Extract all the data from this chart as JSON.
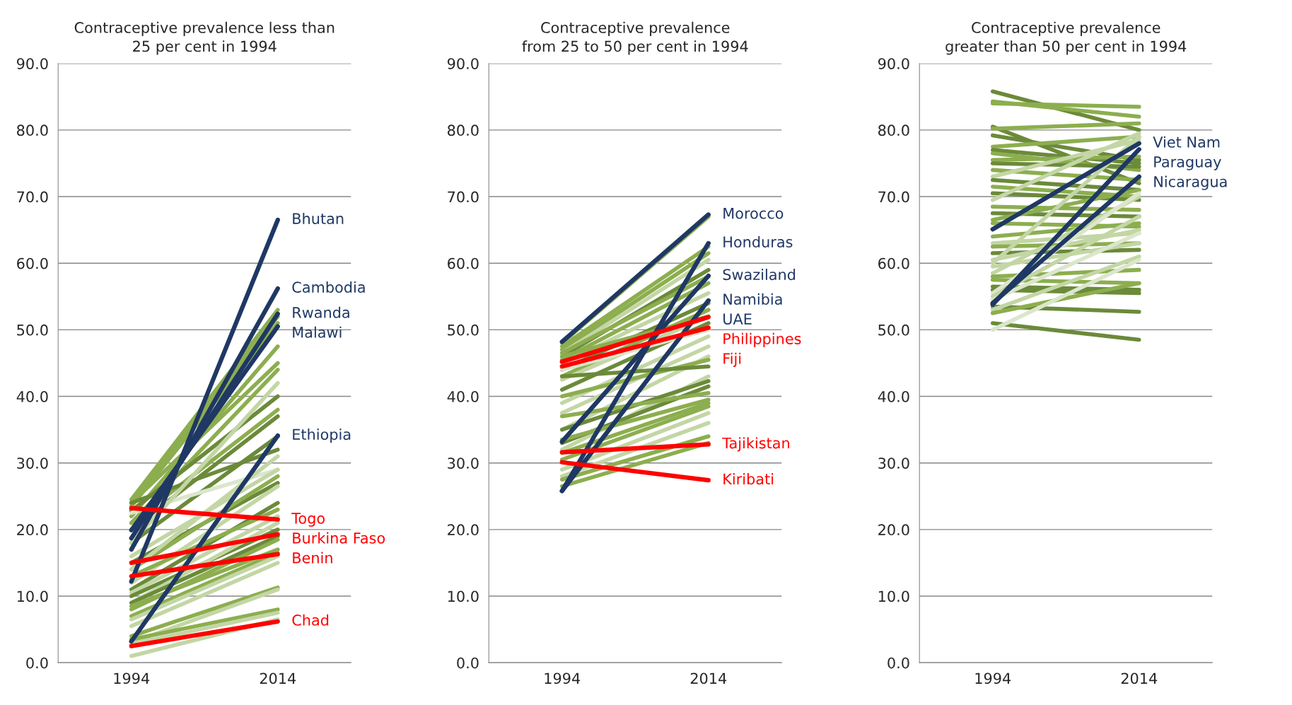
{
  "chart_data": [
    {
      "type": "line",
      "title": "Contraceptive prevalence less than\n25 per cent in 1994",
      "categories": [
        "1994",
        "2014"
      ],
      "ylim": [
        0,
        90
      ],
      "yticks": [
        {
          "value": 0,
          "label": "0.0"
        },
        {
          "value": 10,
          "label": "10.0"
        },
        {
          "value": 20,
          "label": "20.0"
        },
        {
          "value": 30,
          "label": "30.0"
        },
        {
          "value": 40,
          "label": "40.0"
        },
        {
          "value": 50,
          "label": "50.0"
        },
        {
          "value": 60,
          "label": "60.0"
        },
        {
          "value": 70,
          "label": "70.0"
        },
        {
          "value": 80,
          "label": "80.0"
        },
        {
          "value": 90,
          "label": "90.0"
        }
      ],
      "grid": "y",
      "legend": false,
      "series": [
        {
          "color": "#8cae4f",
          "values": [
            24.5,
            53
          ]
        },
        {
          "color": "#8cae4f",
          "values": [
            24,
            52
          ]
        },
        {
          "color": "#8cae4f",
          "values": [
            23.5,
            51
          ]
        },
        {
          "color": "#8cae4f",
          "values": [
            24,
            45
          ]
        },
        {
          "color": "#8cae4f",
          "values": [
            22,
            47.5
          ]
        },
        {
          "color": "#8cae4f",
          "values": [
            21,
            44
          ]
        },
        {
          "color": "#6b8a3a",
          "values": [
            22.8,
            40
          ]
        },
        {
          "color": "#8cae4f",
          "values": [
            21,
            38
          ]
        },
        {
          "color": "#6b8a3a",
          "values": [
            20,
            37
          ]
        },
        {
          "color": "#6b8a3a",
          "values": [
            18,
            34
          ]
        },
        {
          "color": "#6b8a3a",
          "values": [
            24,
            32
          ]
        },
        {
          "color": "#dbe6cc",
          "values": [
            22.5,
            29
          ]
        },
        {
          "color": "#c3d6a5",
          "values": [
            18,
            42
          ]
        },
        {
          "color": "#c3d6a5",
          "values": [
            16,
            29
          ]
        },
        {
          "color": "#6b8a3a",
          "values": [
            15,
            27
          ]
        },
        {
          "color": "#8cae4f",
          "values": [
            14,
            28
          ]
        },
        {
          "color": "#c3d6a5",
          "values": [
            14,
            31
          ]
        },
        {
          "color": "#c3d6a5",
          "values": [
            12,
            26.5
          ]
        },
        {
          "color": "#6b8a3a",
          "values": [
            11,
            24
          ]
        },
        {
          "color": "#8cae4f",
          "values": [
            13,
            23
          ]
        },
        {
          "color": "#c3d6a5",
          "values": [
            10.5,
            22
          ]
        },
        {
          "color": "#6b8a3a",
          "values": [
            10,
            20
          ]
        },
        {
          "color": "#c3d6a5",
          "values": [
            9,
            21
          ]
        },
        {
          "color": "#6b8a3a",
          "values": [
            9,
            19
          ]
        },
        {
          "color": "#8cae4f",
          "values": [
            8,
            18.5
          ]
        },
        {
          "color": "#8cae4f",
          "values": [
            8.5,
            17
          ]
        },
        {
          "color": "#8cae4f",
          "values": [
            7,
            16.5
          ]
        },
        {
          "color": "#c3d6a5",
          "values": [
            6.5,
            16
          ]
        },
        {
          "color": "#c3d6a5",
          "values": [
            5.5,
            15
          ]
        },
        {
          "color": "#8cae4f",
          "values": [
            4,
            11.3
          ]
        },
        {
          "color": "#c3d6a5",
          "values": [
            3,
            11
          ]
        },
        {
          "color": "#8cae4f",
          "values": [
            3.5,
            8
          ]
        },
        {
          "color": "#c3d6a5",
          "values": [
            2.8,
            7.5
          ]
        },
        {
          "color": "#c3d6a5",
          "values": [
            1,
            6.5
          ]
        },
        {
          "name": "Bhutan",
          "color": "#1f3864",
          "values": [
            12.2,
            66.5
          ]
        },
        {
          "name": "Cambodia",
          "color": "#1f3864",
          "values": [
            17,
            56.2
          ]
        },
        {
          "name": "Rwanda",
          "color": "#1f3864",
          "values": [
            18.7,
            52.4
          ]
        },
        {
          "name": "Malawi",
          "color": "#1f3864",
          "values": [
            19.9,
            50.5
          ]
        },
        {
          "name": "Ethiopia",
          "color": "#1f3864",
          "values": [
            3.2,
            34.1
          ]
        },
        {
          "name": "Togo",
          "color": "#ff0000",
          "values": [
            23.2,
            21.5
          ]
        },
        {
          "name": "Burkina Faso",
          "color": "#ff0000",
          "values": [
            15,
            19.3
          ]
        },
        {
          "name": "Benin",
          "color": "#ff0000",
          "values": [
            13,
            16.3
          ]
        },
        {
          "name": "Chad",
          "color": "#ff0000",
          "values": [
            2.5,
            6.2
          ]
        }
      ]
    },
    {
      "type": "line",
      "title": "Contraceptive prevalence\nfrom 25 to 50 per cent in 1994",
      "categories": [
        "1994",
        "2014"
      ],
      "ylim": [
        0,
        90
      ],
      "yticks": [
        {
          "value": 0,
          "label": "0.0"
        },
        {
          "value": 10,
          "label": "10.0"
        },
        {
          "value": 20,
          "label": "20.0"
        },
        {
          "value": 30,
          "label": "30.0"
        },
        {
          "value": 40,
          "label": "40.0"
        },
        {
          "value": 50,
          "label": "50.0"
        },
        {
          "value": 60,
          "label": "60.0"
        },
        {
          "value": 70,
          "label": "70.0"
        },
        {
          "value": 80,
          "label": "80.0"
        },
        {
          "value": 90,
          "label": "90.0"
        }
      ],
      "grid": "y",
      "legend": false,
      "annotations": [
        "UAE"
      ],
      "series": [
        {
          "color": "#8cae4f",
          "values": [
            48,
            67
          ]
        },
        {
          "color": "#8cae4f",
          "values": [
            47.5,
            62.5
          ]
        },
        {
          "color": "#8cae4f",
          "values": [
            47,
            61.5
          ]
        },
        {
          "color": "#c3d6a5",
          "values": [
            46.5,
            60.5
          ]
        },
        {
          "color": "#6b8a3a",
          "values": [
            46,
            59
          ]
        },
        {
          "color": "#8cae4f",
          "values": [
            46.5,
            58
          ]
        },
        {
          "color": "#8cae4f",
          "values": [
            45.5,
            57
          ]
        },
        {
          "color": "#c3d6a5",
          "values": [
            45,
            55.5
          ]
        },
        {
          "color": "#6b8a3a",
          "values": [
            44,
            54
          ]
        },
        {
          "color": "#8cae4f",
          "values": [
            43,
            53
          ]
        },
        {
          "color": "#c3d6a5",
          "values": [
            42.5,
            52
          ]
        },
        {
          "color": "#6b8a3a",
          "values": [
            41,
            51
          ]
        },
        {
          "color": "#dbe6cc",
          "values": [
            44,
            50
          ]
        },
        {
          "color": "#8cae4f",
          "values": [
            46,
            52
          ]
        },
        {
          "color": "#c3d6a5",
          "values": [
            39,
            49
          ]
        },
        {
          "color": "#c3d6a5",
          "values": [
            37.5,
            47.5
          ]
        },
        {
          "color": "#c3d6a5",
          "values": [
            35,
            46
          ]
        },
        {
          "color": "#8cae4f",
          "values": [
            40,
            45.5
          ]
        },
        {
          "color": "#6b8a3a",
          "values": [
            43,
            44.5
          ]
        },
        {
          "color": "#c3d6a5",
          "values": [
            32,
            43
          ]
        },
        {
          "color": "#6b8a3a",
          "values": [
            35,
            42.3
          ]
        },
        {
          "color": "#6b8a3a",
          "values": [
            33,
            41.5
          ]
        },
        {
          "color": "#8cae4f",
          "values": [
            37,
            40.5
          ]
        },
        {
          "color": "#8cae4f",
          "values": [
            33.5,
            39.5
          ]
        },
        {
          "color": "#8cae4f",
          "values": [
            31.5,
            39
          ]
        },
        {
          "color": "#8cae4f",
          "values": [
            30.5,
            38.5
          ]
        },
        {
          "color": "#c3d6a5",
          "values": [
            29,
            37.5
          ]
        },
        {
          "color": "#c3d6a5",
          "values": [
            28,
            36
          ]
        },
        {
          "color": "#8cae4f",
          "values": [
            27.5,
            34
          ]
        },
        {
          "color": "#8cae4f",
          "values": [
            26.5,
            33
          ]
        },
        {
          "name": "Morocco",
          "color": "#1f3864",
          "values": [
            48.2,
            67.3
          ]
        },
        {
          "name": "Honduras",
          "color": "#1f3864",
          "values": [
            25.8,
            63
          ]
        },
        {
          "name": "Swaziland",
          "color": "#1f3864",
          "values": [
            33.2,
            58.1
          ]
        },
        {
          "name": "Namibia",
          "color": "#1f3864",
          "values": [
            25.8,
            54.4
          ]
        },
        {
          "name": "Philippines",
          "color": "#ff0000",
          "values": [
            45.2,
            51.9
          ]
        },
        {
          "name": "Fiji",
          "color": "#ff0000",
          "values": [
            44.5,
            50.3
          ]
        },
        {
          "name": "Tajikistan",
          "color": "#ff0000",
          "values": [
            31.6,
            32.8
          ]
        },
        {
          "name": "Kiribati",
          "color": "#ff0000",
          "values": [
            30.1,
            27.4
          ]
        }
      ]
    },
    {
      "type": "line",
      "title": "Contraceptive prevalence\ngreater than 50 per cent in 1994",
      "categories": [
        "1994",
        "2014"
      ],
      "ylim": [
        0,
        90
      ],
      "yticks": [
        {
          "value": 0,
          "label": "0.0"
        },
        {
          "value": 10,
          "label": "10.0"
        },
        {
          "value": 20,
          "label": "20.0"
        },
        {
          "value": 30,
          "label": "30.0"
        },
        {
          "value": 40,
          "label": "40.0"
        },
        {
          "value": 50,
          "label": "50.0"
        },
        {
          "value": 60,
          "label": "60.0"
        },
        {
          "value": 70,
          "label": "70.0"
        },
        {
          "value": 80,
          "label": "80.0"
        },
        {
          "value": 90,
          "label": "90.0"
        }
      ],
      "grid": "y",
      "legend": false,
      "series": [
        {
          "color": "#6b8a3a",
          "values": [
            85.8,
            80
          ]
        },
        {
          "color": "#8cae4f",
          "values": [
            84.3,
            82
          ]
        },
        {
          "color": "#8cae4f",
          "values": [
            84,
            83.5
          ]
        },
        {
          "color": "#6b8a3a",
          "values": [
            80.5,
            72
          ]
        },
        {
          "color": "#8cae4f",
          "values": [
            80.2,
            81
          ]
        },
        {
          "color": "#6b8a3a",
          "values": [
            79.2,
            75.5
          ]
        },
        {
          "color": "#8cae4f",
          "values": [
            77.5,
            79
          ]
        },
        {
          "color": "#6b8a3a",
          "values": [
            77,
            75
          ]
        },
        {
          "color": "#8cae4f",
          "values": [
            76.5,
            74
          ]
        },
        {
          "color": "#8cae4f",
          "values": [
            75.5,
            76
          ]
        },
        {
          "color": "#6b8a3a",
          "values": [
            75,
            74.5
          ]
        },
        {
          "color": "#8cae4f",
          "values": [
            74,
            72.5
          ]
        },
        {
          "color": "#c3d6a5",
          "values": [
            73,
            78.5
          ]
        },
        {
          "color": "#6b8a3a",
          "values": [
            72.5,
            71
          ]
        },
        {
          "color": "#8cae4f",
          "values": [
            71.5,
            70
          ]
        },
        {
          "color": "#6b8a3a",
          "values": [
            70.5,
            69.5
          ]
        },
        {
          "color": "#c3d6a5",
          "values": [
            69.5,
            79.5
          ]
        },
        {
          "color": "#8cae4f",
          "values": [
            68.5,
            68
          ]
        },
        {
          "color": "#6b8a3a",
          "values": [
            67.5,
            67
          ]
        },
        {
          "color": "#8cae4f",
          "values": [
            66.5,
            71
          ]
        },
        {
          "color": "#8cae4f",
          "values": [
            66,
            65.5
          ]
        },
        {
          "color": "#8cae4f",
          "values": [
            64,
            66
          ]
        },
        {
          "color": "#c3d6a5",
          "values": [
            63,
            64.5
          ]
        },
        {
          "color": "#8cae4f",
          "values": [
            62.5,
            63
          ]
        },
        {
          "color": "#6b8a3a",
          "values": [
            61.5,
            62
          ]
        },
        {
          "color": "#c3d6a5",
          "values": [
            60.5,
            65
          ]
        },
        {
          "color": "#c3d6a5",
          "values": [
            60,
            79
          ]
        },
        {
          "color": "#c3d6a5",
          "values": [
            59.5,
            63
          ]
        },
        {
          "color": "#c3d6a5",
          "values": [
            58.5,
            70
          ]
        },
        {
          "color": "#8cae4f",
          "values": [
            58,
            59
          ]
        },
        {
          "color": "#8cae4f",
          "values": [
            57.5,
            57
          ]
        },
        {
          "color": "#6b8a3a",
          "values": [
            56.5,
            56
          ]
        },
        {
          "color": "#6b8a3a",
          "values": [
            56,
            55.5
          ]
        },
        {
          "color": "#dbe6cc",
          "values": [
            55.5,
            70.5
          ]
        },
        {
          "color": "#c3d6a5",
          "values": [
            55,
            67
          ]
        },
        {
          "color": "#dbe6cc",
          "values": [
            54.5,
            64.5
          ]
        },
        {
          "color": "#6b8a3a",
          "values": [
            53.5,
            52.7
          ]
        },
        {
          "color": "#c3d6a5",
          "values": [
            53,
            61
          ]
        },
        {
          "color": "#8cae4f",
          "values": [
            52.5,
            57
          ]
        },
        {
          "color": "#6b8a3a",
          "values": [
            51,
            48.5
          ]
        },
        {
          "color": "#dbe6cc",
          "values": [
            50,
            60.5
          ]
        },
        {
          "name": "Viet Nam",
          "color": "#1f3864",
          "values": [
            65.1,
            78
          ]
        },
        {
          "name": "Paraguay",
          "color": "#1f3864",
          "values": [
            53.8,
            77.1
          ]
        },
        {
          "name": "Nicaragua",
          "color": "#1f3864",
          "values": [
            54,
            73
          ]
        }
      ]
    }
  ]
}
